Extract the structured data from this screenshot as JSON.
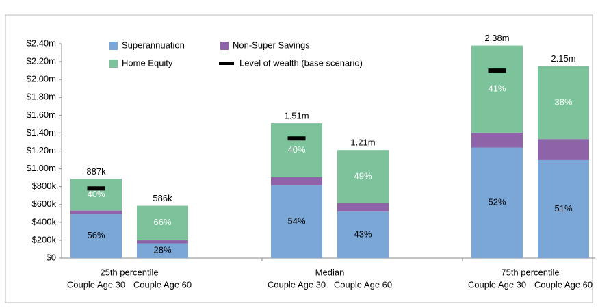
{
  "chart_data": {
    "type": "stacked-bar",
    "groups": [
      "25th percentile",
      "Median",
      "75th percentile"
    ],
    "categories": [
      "Couple Age 30",
      "Couple Age 60",
      "Couple Age 30",
      "Couple Age 60",
      "Couple Age 30",
      "Couple Age 60"
    ],
    "series": [
      {
        "name": "Superannuation",
        "color": "#7ba7d7",
        "values": [
          497000,
          164000,
          815000,
          520000,
          1238000,
          1097000
        ],
        "share_labels": [
          "56%",
          "28%",
          "54%",
          "43%",
          "52%",
          "51%"
        ]
      },
      {
        "name": "Non-Super Savings",
        "color": "#8e63a8",
        "values": [
          35000,
          35000,
          91000,
          97000,
          166000,
          236000
        ]
      },
      {
        "name": "Home Equity",
        "color": "#7cc39b",
        "values": [
          355000,
          387000,
          604000,
          593000,
          976000,
          817000
        ],
        "share_labels": [
          "40%",
          "66%",
          "40%",
          "49%",
          "41%",
          "38%"
        ]
      }
    ],
    "markers": {
      "name": "Level of wealth (base scenario)",
      "color": "#000000",
      "values": [
        780000,
        null,
        1340000,
        null,
        2100000,
        null
      ]
    },
    "totals": [
      887000,
      586000,
      1510000,
      1210000,
      2380000,
      2150000
    ],
    "total_labels": [
      "887k",
      "586k",
      "1.51m",
      "1.21m",
      "2.38m",
      "2.15m"
    ],
    "ylim": [
      0,
      2400000
    ],
    "yticks": [
      {
        "value": 0,
        "label": "$0"
      },
      {
        "value": 200000,
        "label": "$200k"
      },
      {
        "value": 400000,
        "label": "$400k"
      },
      {
        "value": 600000,
        "label": "$600k"
      },
      {
        "value": 800000,
        "label": "$800k"
      },
      {
        "value": 1000000,
        "label": "$1.00m"
      },
      {
        "value": 1200000,
        "label": "$1.20m"
      },
      {
        "value": 1400000,
        "label": "$1.40m"
      },
      {
        "value": 1600000,
        "label": "$1.60m"
      },
      {
        "value": 1800000,
        "label": "$1.80m"
      },
      {
        "value": 2000000,
        "label": "$2.00m"
      },
      {
        "value": 2200000,
        "label": "$2.20m"
      },
      {
        "value": 2400000,
        "label": "$2.40m"
      }
    ]
  }
}
